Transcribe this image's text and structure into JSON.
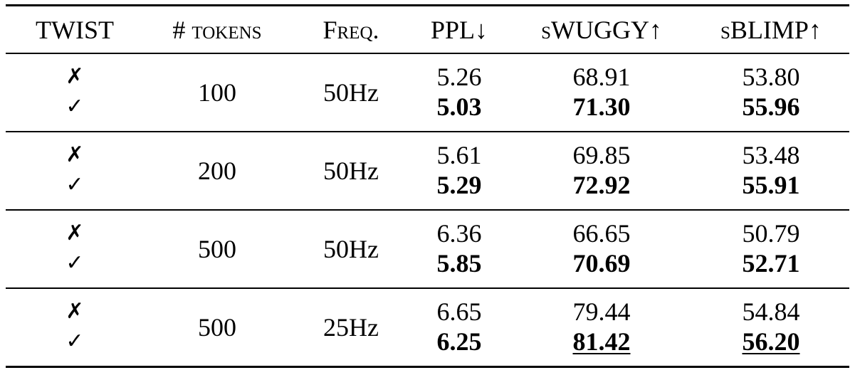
{
  "table": {
    "header": [
      "TWIST",
      "# tokens",
      "Freq.",
      "PPL↓",
      "sWUGGY↑",
      "sBLIMP↑"
    ],
    "rows": [
      {
        "twist": [
          "✗",
          "✓"
        ],
        "tokens": "100",
        "freq": "50Hz",
        "ppl": [
          "5.26",
          "5.03"
        ],
        "swuggy": [
          "68.91",
          "71.30"
        ],
        "sblimp": [
          "53.80",
          "55.96"
        ]
      },
      {
        "twist": [
          "✗",
          "✓"
        ],
        "tokens": "200",
        "freq": "50Hz",
        "ppl": [
          "5.61",
          "5.29"
        ],
        "swuggy": [
          "69.85",
          "72.92"
        ],
        "sblimp": [
          "53.48",
          "55.91"
        ]
      },
      {
        "twist": [
          "✗",
          "✓"
        ],
        "tokens": "500",
        "freq": "50Hz",
        "ppl": [
          "6.36",
          "5.85"
        ],
        "swuggy": [
          "66.65",
          "70.69"
        ],
        "sblimp": [
          "50.79",
          "52.71"
        ]
      },
      {
        "twist": [
          "✗",
          "✓"
        ],
        "tokens": "500",
        "freq": "25Hz",
        "ppl": [
          "6.65",
          "6.25"
        ],
        "swuggy": [
          "79.44",
          "81.42"
        ],
        "sblimp": [
          "54.84",
          "56.20"
        ]
      }
    ]
  }
}
